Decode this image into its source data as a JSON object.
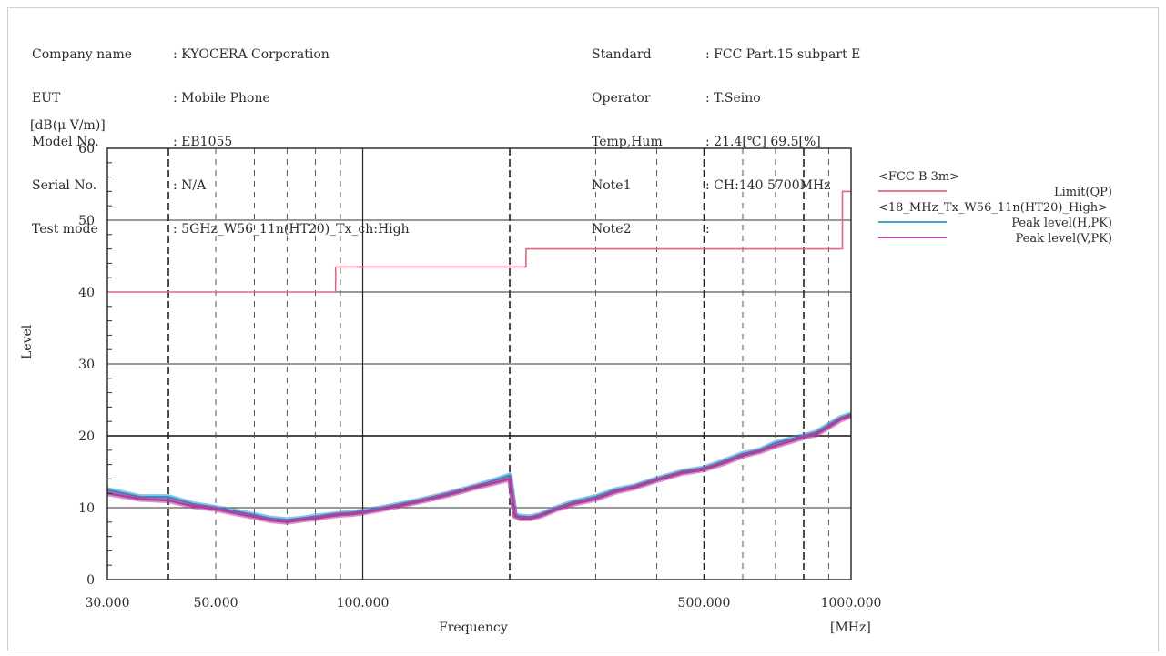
{
  "header": {
    "left": [
      {
        "label": "Company name",
        "value": ": KYOCERA Corporation"
      },
      {
        "label": "EUT",
        "value": ": Mobile Phone"
      },
      {
        "label": "Model No.",
        "value": ": EB1055"
      },
      {
        "label": "Serial No.",
        "value": ": N/A"
      },
      {
        "label": "Test mode",
        "value": ": 5GHz_W56_11n(HT20)_Tx_ch:High"
      }
    ],
    "right": [
      {
        "label": "Standard",
        "value": ": FCC Part.15 subpart E"
      },
      {
        "label": "Operator",
        "value": ": T.Seino"
      },
      {
        "label": "Temp,Hum",
        "value": ": 21.4[℃] 69.5[%]"
      },
      {
        "label": "Note1",
        "value": ": CH:140 5700MHz"
      },
      {
        "label": "Note2",
        "value": ":"
      }
    ]
  },
  "chart_data": {
    "type": "line",
    "ylabel": "Level",
    "yunit": "[dB(μ V/m)]",
    "xlabel": "Frequency",
    "xunit": "[MHz]",
    "xscale": "log",
    "xlim": [
      30,
      1000
    ],
    "ylim": [
      0,
      60
    ],
    "yticks": [
      0,
      10,
      20,
      30,
      40,
      50,
      60
    ],
    "xtick_labels": [
      {
        "value": 30,
        "label": "30.000"
      },
      {
        "value": 50,
        "label": "50.000"
      },
      {
        "value": 100,
        "label": "100.000"
      },
      {
        "value": 500,
        "label": "500.000"
      },
      {
        "value": 1000,
        "label": "1000.000"
      }
    ],
    "x_dashed_grid": [
      40,
      50,
      60,
      70,
      80,
      90,
      200,
      300,
      400,
      500,
      600,
      700,
      800,
      900
    ],
    "legend": {
      "groups": [
        {
          "title": "<FCC B 3m>",
          "entries": [
            {
              "name": "Limit(QP)",
              "color": "#e0687e"
            }
          ]
        },
        {
          "title": "<18_MHz_Tx_W56_11n(HT20)_High>",
          "entries": [
            {
              "name": "Peak level(H,PK)",
              "color": "#2a93c9"
            },
            {
              "name": "Peak level(V,PK)",
              "color": "#b5399b"
            }
          ]
        }
      ]
    },
    "series": [
      {
        "name": "Limit(QP)",
        "color": "#e0687e",
        "x": [
          30,
          88,
          88,
          216,
          216,
          960,
          960,
          1000
        ],
        "y": [
          40.0,
          40.0,
          43.5,
          43.5,
          46.0,
          46.0,
          54.0,
          54.0
        ]
      },
      {
        "name": "Peak level(H,PK)",
        "color": "#2a93c9",
        "x": [
          30,
          35,
          40,
          45,
          50,
          55,
          60,
          65,
          70,
          75,
          80,
          85,
          90,
          95,
          100,
          110,
          120,
          130,
          140,
          150,
          160,
          170,
          180,
          190,
          200,
          205,
          210,
          220,
          230,
          240,
          250,
          270,
          300,
          330,
          360,
          400,
          450,
          500,
          550,
          600,
          650,
          700,
          750,
          800,
          850,
          900,
          950,
          1000
        ],
        "y": [
          12.5,
          11.5,
          11.5,
          10.5,
          10.0,
          9.5,
          9.0,
          8.5,
          8.3,
          8.5,
          8.8,
          9.0,
          9.2,
          9.3,
          9.5,
          10.0,
          10.5,
          11.0,
          11.5,
          12.0,
          12.5,
          13.0,
          13.5,
          14.0,
          14.5,
          9.0,
          8.8,
          8.7,
          9.0,
          9.5,
          10.0,
          10.8,
          11.5,
          12.5,
          13.0,
          14.0,
          15.0,
          15.5,
          16.5,
          17.5,
          18.0,
          19.0,
          19.5,
          20.0,
          20.5,
          21.5,
          22.5,
          23.0
        ]
      },
      {
        "name": "Peak level(V,PK)",
        "color": "#b5399b",
        "x": [
          30,
          35,
          40,
          45,
          50,
          55,
          60,
          65,
          70,
          75,
          80,
          85,
          90,
          95,
          100,
          110,
          120,
          130,
          140,
          150,
          160,
          170,
          180,
          190,
          200,
          205,
          210,
          220,
          230,
          240,
          250,
          270,
          300,
          330,
          360,
          400,
          450,
          500,
          550,
          600,
          650,
          700,
          750,
          800,
          850,
          900,
          950,
          1000
        ],
        "y": [
          12.0,
          11.2,
          11.0,
          10.2,
          9.8,
          9.2,
          8.7,
          8.2,
          8.0,
          8.3,
          8.5,
          8.8,
          9.0,
          9.1,
          9.3,
          9.8,
          10.3,
          10.8,
          11.3,
          11.8,
          12.3,
          12.8,
          13.2,
          13.6,
          14.0,
          8.8,
          8.5,
          8.5,
          8.8,
          9.3,
          9.8,
          10.5,
          11.2,
          12.2,
          12.8,
          13.8,
          14.8,
          15.3,
          16.2,
          17.2,
          17.8,
          18.6,
          19.2,
          19.8,
          20.2,
          21.2,
          22.2,
          22.8
        ]
      }
    ]
  }
}
